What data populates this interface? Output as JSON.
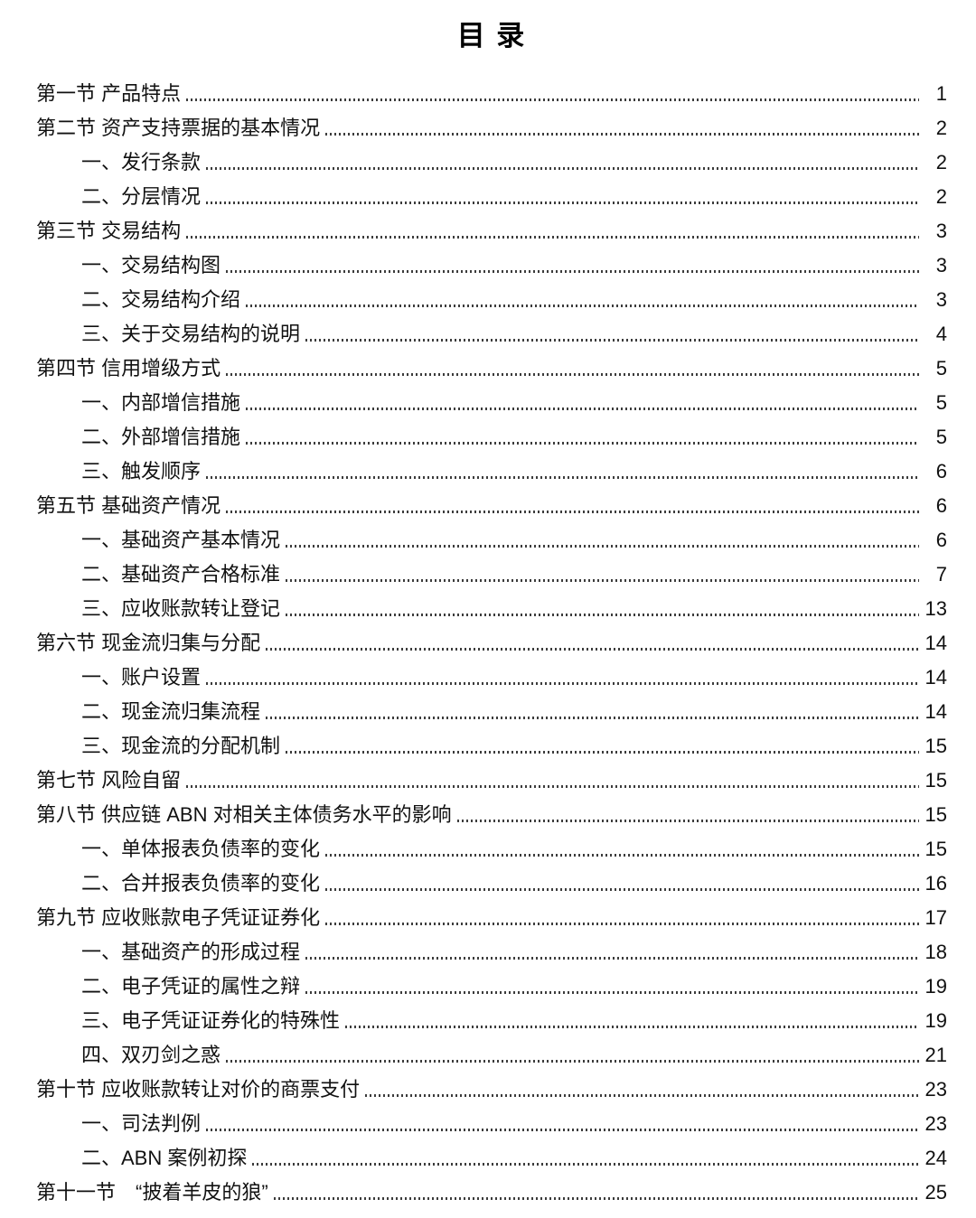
{
  "page": {
    "title": "目 录",
    "entries": [
      {
        "level": 1,
        "label": "第一节 产品特点",
        "page": "1"
      },
      {
        "level": 1,
        "label": "第二节 资产支持票据的基本情况",
        "page": "2"
      },
      {
        "level": 2,
        "label": "一、发行条款",
        "page": "2"
      },
      {
        "level": 2,
        "label": "二、分层情况",
        "page": "2"
      },
      {
        "level": 1,
        "label": "第三节 交易结构",
        "page": "3"
      },
      {
        "level": 2,
        "label": "一、交易结构图",
        "page": "3"
      },
      {
        "level": 2,
        "label": "二、交易结构介绍",
        "page": "3"
      },
      {
        "level": 2,
        "label": "三、关于交易结构的说明",
        "page": "4"
      },
      {
        "level": 1,
        "label": "第四节 信用增级方式",
        "page": "5"
      },
      {
        "level": 2,
        "label": "一、内部增信措施",
        "page": "5"
      },
      {
        "level": 2,
        "label": "二、外部增信措施",
        "page": "5"
      },
      {
        "level": 2,
        "label": "三、触发顺序",
        "page": "6"
      },
      {
        "level": 1,
        "label": "第五节 基础资产情况",
        "page": "6"
      },
      {
        "level": 2,
        "label": "一、基础资产基本情况",
        "page": "6"
      },
      {
        "level": 2,
        "label": "二、基础资产合格标准",
        "page": "7"
      },
      {
        "level": 2,
        "label": "三、应收账款转让登记",
        "page": "13"
      },
      {
        "level": 1,
        "label": "第六节 现金流归集与分配",
        "page": "14"
      },
      {
        "level": 2,
        "label": "一、账户设置",
        "page": "14"
      },
      {
        "level": 2,
        "label": "二、现金流归集流程",
        "page": "14"
      },
      {
        "level": 2,
        "label": "三、现金流的分配机制",
        "page": "15"
      },
      {
        "level": 1,
        "label": "第七节 风险自留",
        "page": "15"
      },
      {
        "level": 1,
        "label": "第八节 供应链 ABN 对相关主体债务水平的影响",
        "page": "15"
      },
      {
        "level": 2,
        "label": "一、单体报表负债率的变化",
        "page": "15"
      },
      {
        "level": 2,
        "label": "二、合并报表负债率的变化",
        "page": "16"
      },
      {
        "level": 1,
        "label": "第九节 应收账款电子凭证证券化",
        "page": "17"
      },
      {
        "level": 2,
        "label": "一、基础资产的形成过程",
        "page": "18"
      },
      {
        "level": 2,
        "label": "二、电子凭证的属性之辩",
        "page": "19"
      },
      {
        "level": 2,
        "label": "三、电子凭证证券化的特殊性",
        "page": "19"
      },
      {
        "level": 2,
        "label": "四、双刃剑之惑",
        "page": "21"
      },
      {
        "level": 1,
        "label": "第十节 应收账款转让对价的商票支付",
        "page": "23"
      },
      {
        "level": 2,
        "label": "一、司法判例",
        "page": "23"
      },
      {
        "level": 2,
        "label": "二、ABN 案例初探",
        "page": "24"
      },
      {
        "level": 1,
        "label": "第十一节　“披着羊皮的狼”",
        "page": "25"
      }
    ]
  }
}
